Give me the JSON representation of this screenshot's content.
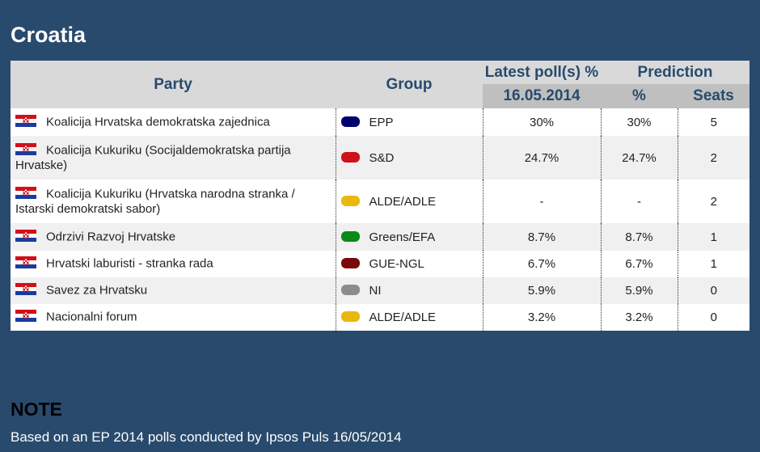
{
  "header": {
    "title": "Croatia"
  },
  "table": {
    "columns": {
      "party": "Party",
      "group": "Group",
      "poll": "Latest poll(s) %",
      "prediction": "Prediction",
      "poll_date": "16.05.2014",
      "percent": "%",
      "seats": "Seats"
    },
    "rows": [
      {
        "party": "Koalicija Hrvatska demokratska zajednica",
        "group": "EPP",
        "color": "#00006e",
        "poll": "30%",
        "percent": "30%",
        "seats": "5"
      },
      {
        "party": "Koalicija Kukuriku (Socijaldemokratska partija Hrvatske)",
        "group": "S&D",
        "color": "#d0101a",
        "poll": "24.7%",
        "percent": "24.7%",
        "seats": "2"
      },
      {
        "party": "Koalicija Kukuriku (Hrvatska narodna stranka / Istarski demokratski sabor)",
        "group": "ALDE/ADLE",
        "color": "#e8b80c",
        "poll": "-",
        "percent": "-",
        "seats": "2"
      },
      {
        "party": "Odrzivi Razvoj Hrvatske",
        "group": "Greens/EFA",
        "color": "#0a8a16",
        "poll": "8.7%",
        "percent": "8.7%",
        "seats": "1"
      },
      {
        "party": "Hrvatski laburisti - stranka rada",
        "group": "GUE-NGL",
        "color": "#7a0a0a",
        "poll": "6.7%",
        "percent": "6.7%",
        "seats": "1"
      },
      {
        "party": "Savez za Hrvatsku",
        "group": "NI",
        "color": "#8c8c8c",
        "poll": "5.9%",
        "percent": "5.9%",
        "seats": "0"
      },
      {
        "party": "Nacionalni forum",
        "group": "ALDE/ADLE",
        "color": "#e8b80c",
        "poll": "3.2%",
        "percent": "3.2%",
        "seats": "0"
      }
    ]
  },
  "note": {
    "title": "NOTE",
    "text": "Based on an EP 2014 polls conducted by Ipsos Puls 16/05/2014"
  }
}
